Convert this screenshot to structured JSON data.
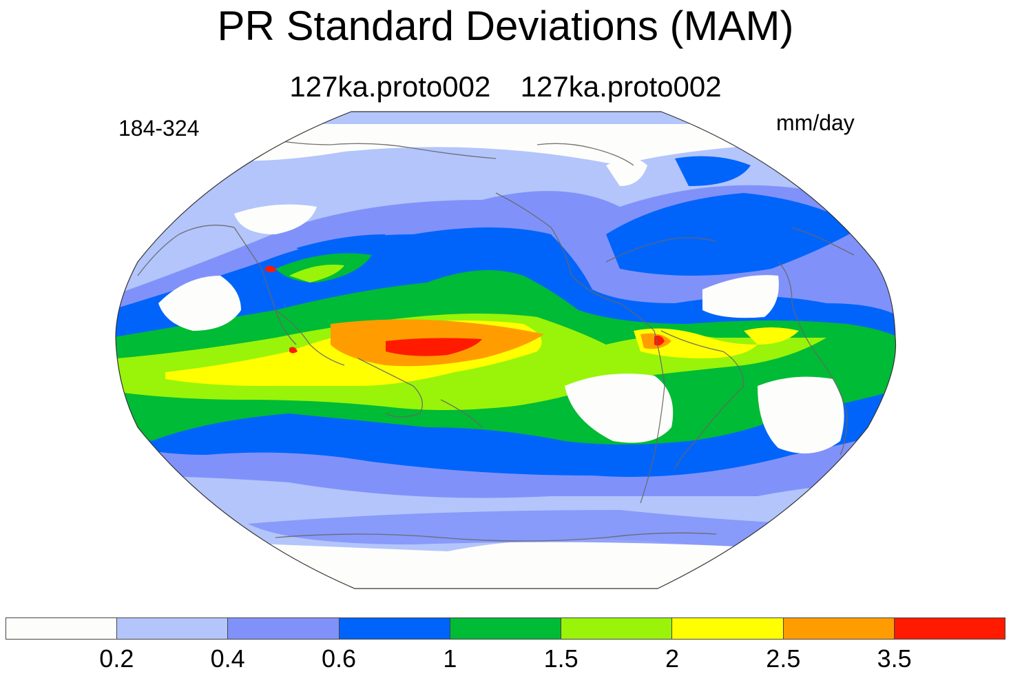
{
  "title": "PR Standard Deviations (MAM)",
  "subtitle": "127ka.proto002  127ka.proto002",
  "left_label": "184-324",
  "units": "mm/day",
  "projection": "Robinson",
  "colorbar": {
    "colors": [
      "#fdfefb",
      "#b3c5fb",
      "#8092f9",
      "#0064fb",
      "#00bb35",
      "#99f409",
      "#ffff00",
      "#ff9d00",
      "#ff1a00"
    ],
    "tick_labels": [
      "0.2",
      "0.4",
      "0.6",
      "1",
      "1.5",
      "2",
      "2.5",
      "3.5"
    ]
  }
}
